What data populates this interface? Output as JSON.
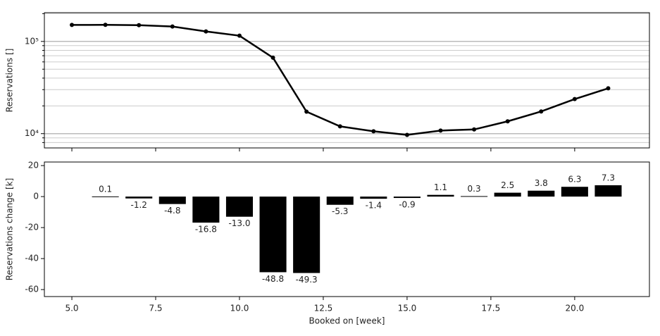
{
  "chart_data": [
    {
      "type": "line",
      "y_label": "Reservations []",
      "log_y": true,
      "grid": true,
      "color": "#000000",
      "x": [
        5,
        6,
        7,
        8,
        9,
        10,
        11,
        12,
        13,
        14,
        15,
        16,
        17,
        18,
        19,
        20,
        21
      ],
      "values": [
        151100,
        151200,
        150000,
        145200,
        128400,
        115400,
        66600,
        17300,
        12000,
        10600,
        9700,
        10800,
        11100,
        13600,
        17400,
        23700,
        31000
      ],
      "xlim": [
        4.18,
        22.23
      ],
      "xticks": [
        5,
        7.5,
        10,
        12.5,
        15,
        17.5,
        20
      ],
      "ylim": [
        7000,
        205000
      ],
      "yticks": [
        {
          "value": 10000,
          "label": "10⁴"
        },
        {
          "value": 100000,
          "label": "10⁵"
        }
      ],
      "minor_yticks": [
        8000,
        9000,
        20000,
        30000,
        40000,
        50000,
        60000,
        70000,
        80000,
        90000,
        200000
      ]
    },
    {
      "type": "bar",
      "y_label": "Reservations change [k]",
      "x_label": "Booked on [week]",
      "color": "#000000",
      "bar_width": 0.8,
      "x": [
        6,
        7,
        8,
        9,
        10,
        11,
        12,
        13,
        14,
        15,
        16,
        17,
        18,
        19,
        20,
        21
      ],
      "values": [
        0.1,
        -1.2,
        -4.8,
        -16.8,
        -13.0,
        -48.8,
        -49.3,
        -5.3,
        -1.4,
        -0.9,
        1.1,
        0.3,
        2.5,
        3.8,
        6.3,
        7.3
      ],
      "value_labels": [
        "0.1",
        "-1.2",
        "-4.8",
        "-16.8",
        "-13.0",
        "-48.8",
        "-49.3",
        "-5.3",
        "-1.4",
        "-0.9",
        "1.1",
        "0.3",
        "2.5",
        "3.8",
        "6.3",
        "7.3"
      ],
      "xlim": [
        4.18,
        22.23
      ],
      "xticks": [
        {
          "value": 5,
          "label": "5.0"
        },
        {
          "value": 7.5,
          "label": "7.5"
        },
        {
          "value": 10,
          "label": "10.0"
        },
        {
          "value": 12.5,
          "label": "12.5"
        },
        {
          "value": 15,
          "label": "15.0"
        },
        {
          "value": 17.5,
          "label": "17.5"
        },
        {
          "value": 20,
          "label": "20.0"
        }
      ],
      "ylim": [
        -64.5,
        22.3
      ],
      "yticks": [
        -60,
        -40,
        -20,
        0,
        20
      ]
    }
  ]
}
